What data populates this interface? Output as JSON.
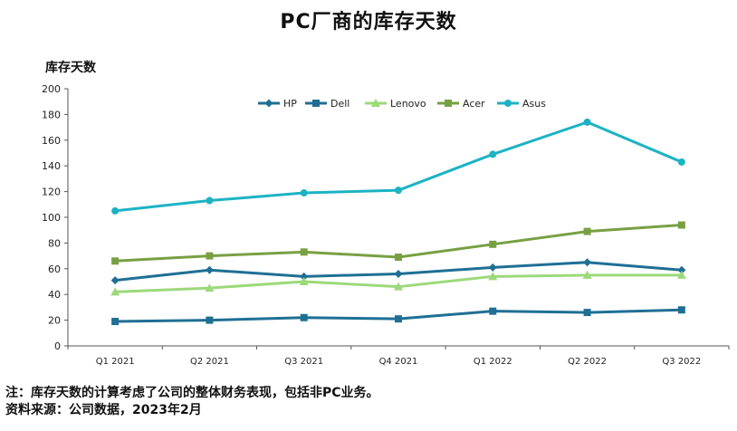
{
  "title": "PC厂商的库存天数",
  "notes": {
    "note": "注：库存天数的计算考虑了公司的整体财务表现，包括非PC业务。",
    "source": "资料来源：公司数据，2023年2月"
  },
  "chart_data": {
    "type": "line",
    "ylabel": "库存天数",
    "xlabel": "",
    "ylim": [
      0,
      200
    ],
    "yticks": [
      0,
      20,
      40,
      60,
      80,
      100,
      120,
      140,
      160,
      180,
      200
    ],
    "grid": false,
    "legend_position": "top-center",
    "categories": [
      "Q1 2021",
      "Q2 2021",
      "Q3 2021",
      "Q4 2021",
      "Q1 2022",
      "Q2 2022",
      "Q3 2022"
    ],
    "series": [
      {
        "name": "HP",
        "color": "#1f6f94",
        "marker": "diamond",
        "values": [
          51,
          59,
          54,
          56,
          61,
          65,
          59
        ]
      },
      {
        "name": "Dell",
        "color": "#1f6f94",
        "marker": "square",
        "values": [
          19,
          20,
          22,
          21,
          27,
          26,
          28
        ]
      },
      {
        "name": "Lenovo",
        "color": "#9cd97a",
        "marker": "triangle",
        "values": [
          42,
          45,
          50,
          46,
          54,
          55,
          55
        ]
      },
      {
        "name": "Acer",
        "color": "#77a043",
        "marker": "square",
        "values": [
          66,
          70,
          73,
          69,
          79,
          89,
          94
        ]
      },
      {
        "name": "Asus",
        "color": "#1cb3c4",
        "marker": "circle",
        "values": [
          105,
          113,
          119,
          121,
          149,
          174,
          143
        ]
      }
    ]
  }
}
